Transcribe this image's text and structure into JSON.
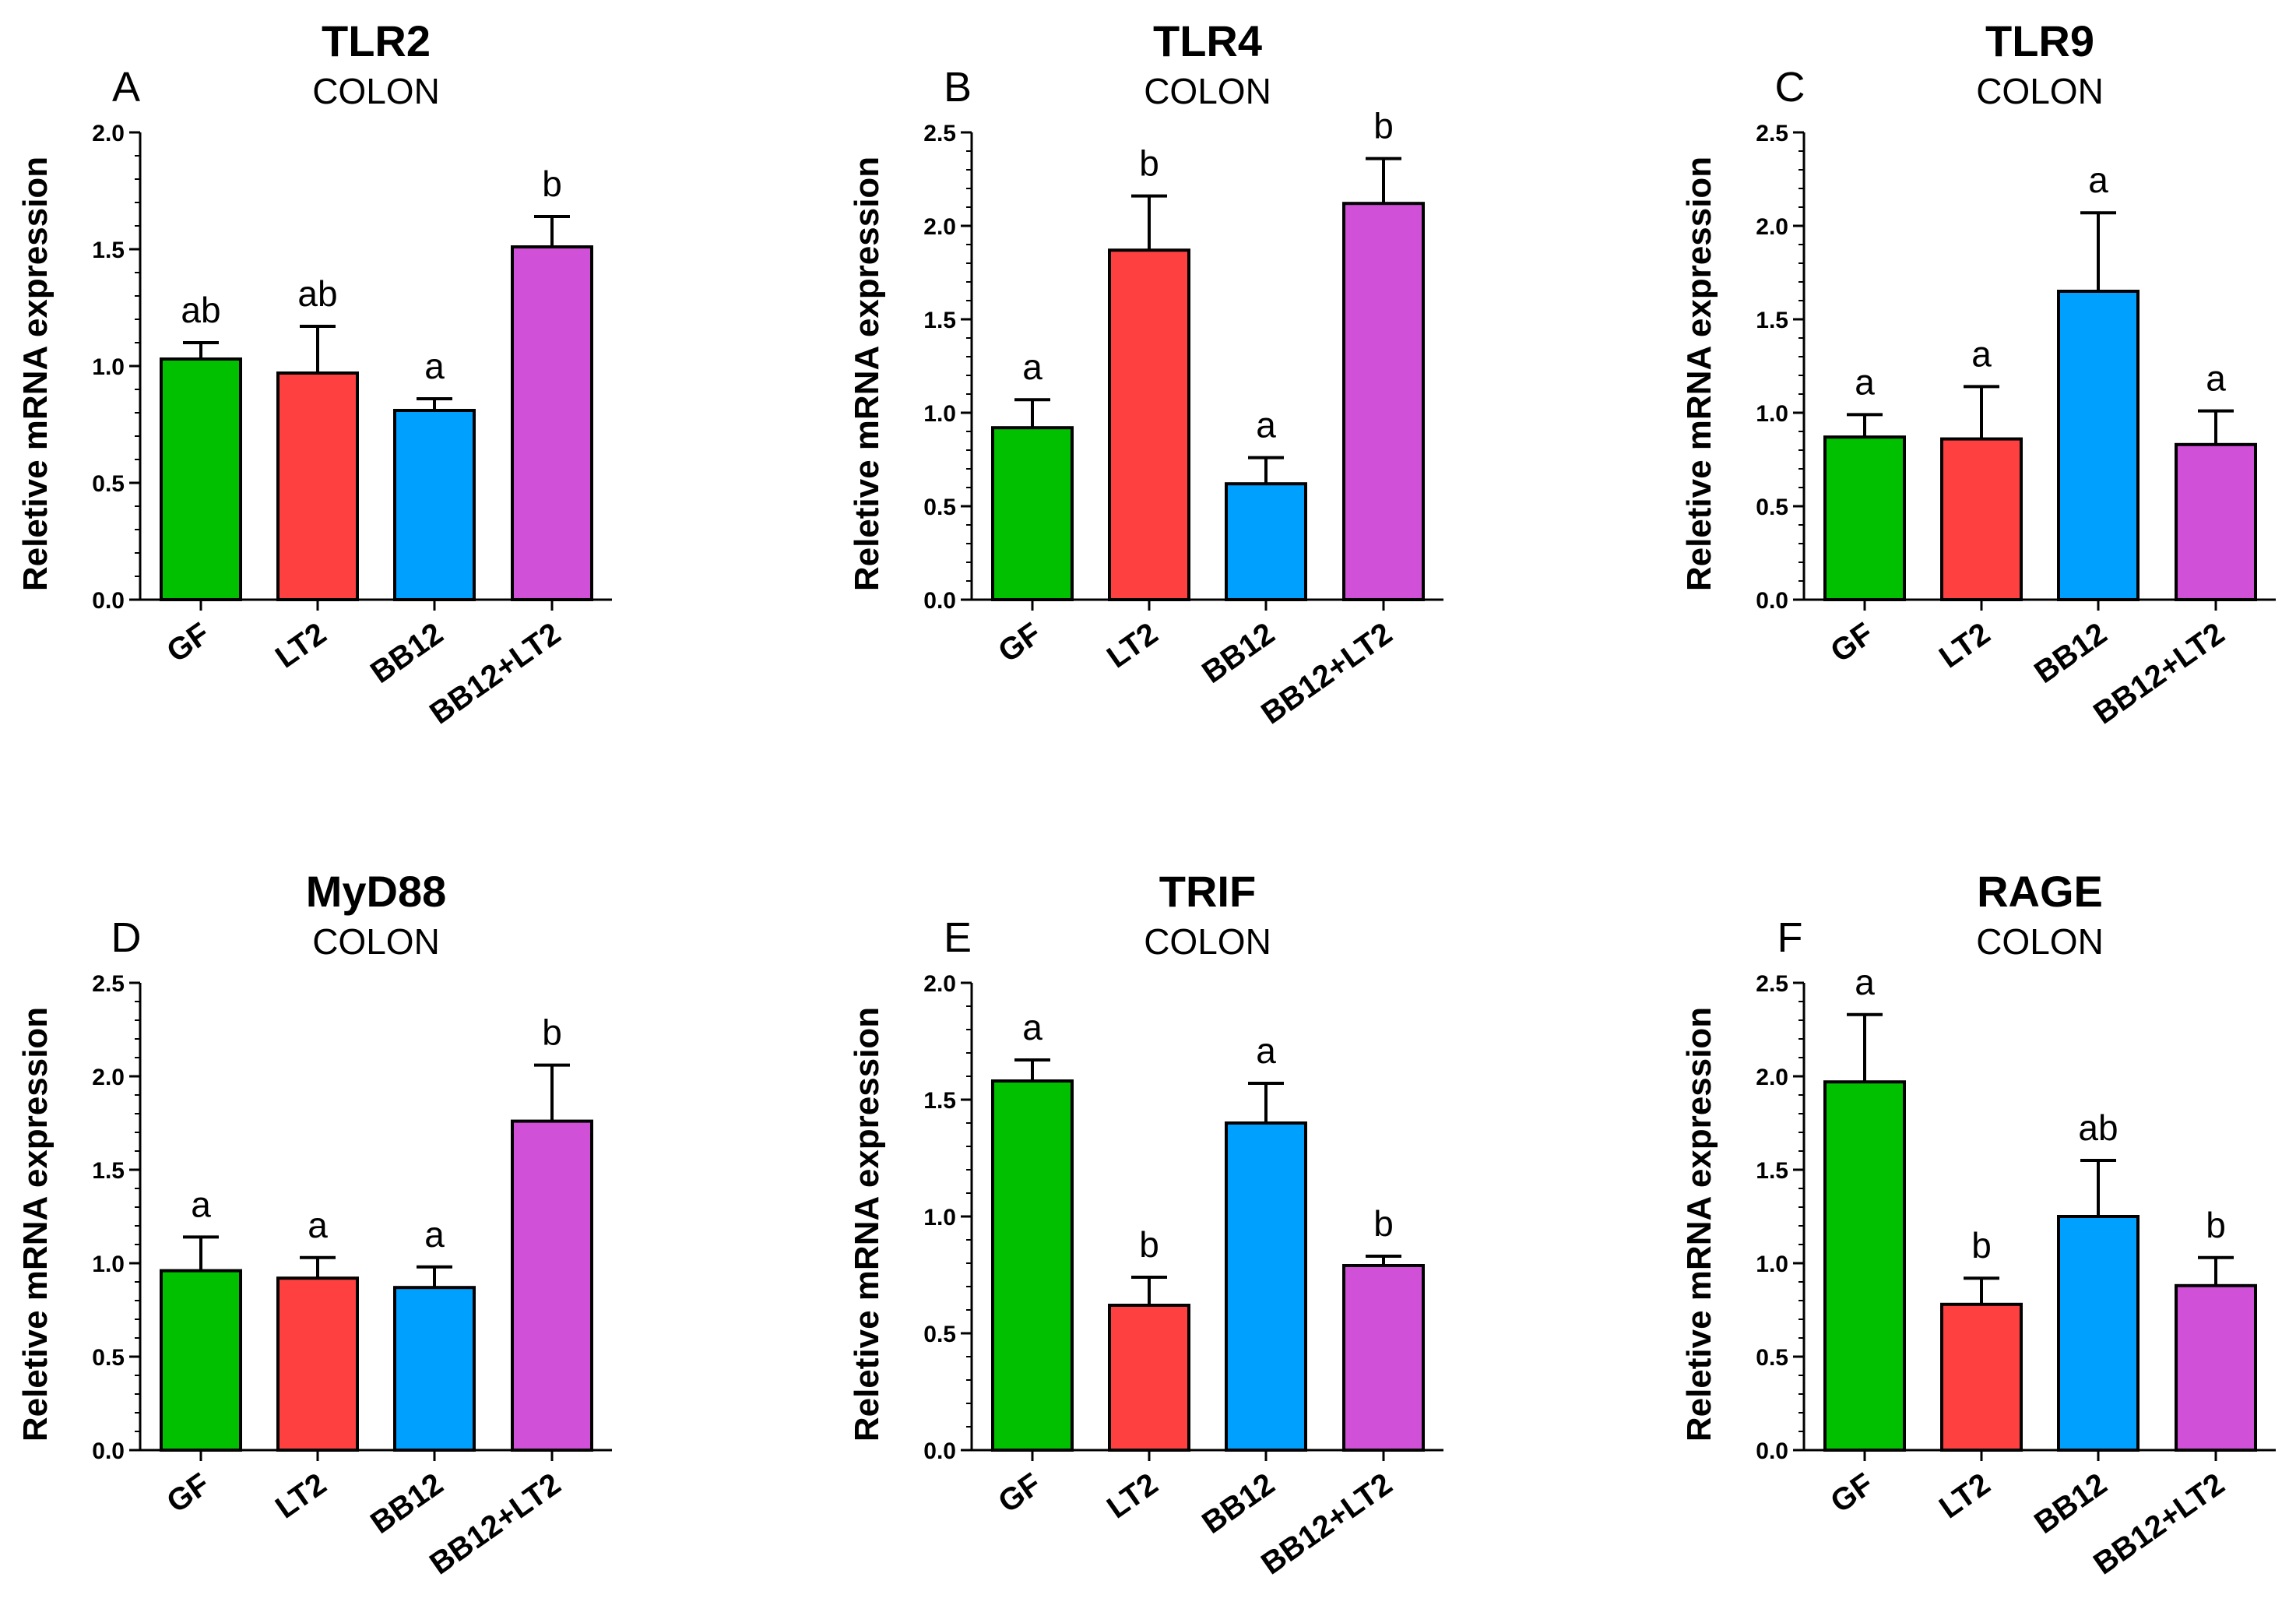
{
  "chart_data": [
    {
      "type": "bar",
      "panel": "A",
      "title": "TLR2",
      "subtitle": "COLON",
      "ylabel": "Reletive mRNA expression",
      "ylim": [
        0,
        2.0
      ],
      "yticks": [
        "0.0",
        "0.5",
        "1.0",
        "1.5",
        "2.0"
      ],
      "categories": [
        "GF",
        "LT2",
        "BB12",
        "BB12+LT2"
      ],
      "values": [
        1.03,
        0.97,
        0.81,
        1.51
      ],
      "errors": [
        0.07,
        0.2,
        0.05,
        0.13
      ],
      "labels": [
        "ab",
        "ab",
        "a",
        "b"
      ],
      "colors": [
        "#00c000",
        "#ff4040",
        "#00a0ff",
        "#d050d8"
      ]
    },
    {
      "type": "bar",
      "panel": "B",
      "title": "TLR4",
      "subtitle": "COLON",
      "ylabel": "Reletive mRNA expression",
      "ylim": [
        0,
        2.5
      ],
      "yticks": [
        "0.0",
        "0.5",
        "1.0",
        "1.5",
        "2.0",
        "2.5"
      ],
      "categories": [
        "GF",
        "LT2",
        "BB12",
        "BB12+LT2"
      ],
      "values": [
        0.92,
        1.87,
        0.62,
        2.12
      ],
      "errors": [
        0.15,
        0.29,
        0.14,
        0.24
      ],
      "labels": [
        "a",
        "b",
        "a",
        "b"
      ],
      "colors": [
        "#00c000",
        "#ff4040",
        "#00a0ff",
        "#d050d8"
      ]
    },
    {
      "type": "bar",
      "panel": "C",
      "title": "TLR9",
      "subtitle": "COLON",
      "ylabel": "Reletive mRNA expression",
      "ylim": [
        0,
        2.5
      ],
      "yticks": [
        "0.0",
        "0.5",
        "1.0",
        "1.5",
        "2.0",
        "2.5"
      ],
      "categories": [
        "GF",
        "LT2",
        "BB12",
        "BB12+LT2"
      ],
      "values": [
        0.87,
        0.86,
        1.65,
        0.83
      ],
      "errors": [
        0.12,
        0.28,
        0.42,
        0.18
      ],
      "labels": [
        "a",
        "a",
        "a",
        "a"
      ],
      "colors": [
        "#00c000",
        "#ff4040",
        "#00a0ff",
        "#d050d8"
      ]
    },
    {
      "type": "bar",
      "panel": "D",
      "title": "MyD88",
      "subtitle": "COLON",
      "ylabel": "Reletive mRNA expression",
      "ylim": [
        0,
        2.5
      ],
      "yticks": [
        "0.0",
        "0.5",
        "1.0",
        "1.5",
        "2.0",
        "2.5"
      ],
      "categories": [
        "GF",
        "LT2",
        "BB12",
        "BB12+LT2"
      ],
      "values": [
        0.96,
        0.92,
        0.87,
        1.76
      ],
      "errors": [
        0.18,
        0.11,
        0.11,
        0.3
      ],
      "labels": [
        "a",
        "a",
        "a",
        "b"
      ],
      "colors": [
        "#00c000",
        "#ff4040",
        "#00a0ff",
        "#d050d8"
      ]
    },
    {
      "type": "bar",
      "panel": "E",
      "title": "TRIF",
      "subtitle": "COLON",
      "ylabel": "Reletive mRNA expression",
      "ylim": [
        0,
        2.0
      ],
      "yticks": [
        "0.0",
        "0.5",
        "1.0",
        "1.5",
        "2.0"
      ],
      "categories": [
        "GF",
        "LT2",
        "BB12",
        "BB12+LT2"
      ],
      "values": [
        1.58,
        0.62,
        1.4,
        0.79
      ],
      "errors": [
        0.09,
        0.12,
        0.17,
        0.04
      ],
      "labels": [
        "a",
        "b",
        "a",
        "b"
      ],
      "colors": [
        "#00c000",
        "#ff4040",
        "#00a0ff",
        "#d050d8"
      ]
    },
    {
      "type": "bar",
      "panel": "F",
      "title": "RAGE",
      "subtitle": "COLON",
      "ylabel": "Reletive mRNA expression",
      "ylim": [
        0,
        2.5
      ],
      "yticks": [
        "0.0",
        "0.5",
        "1.0",
        "1.5",
        "2.0",
        "2.5"
      ],
      "categories": [
        "GF",
        "LT2",
        "BB12",
        "BB12+LT2"
      ],
      "values": [
        1.97,
        0.78,
        1.25,
        0.88
      ],
      "errors": [
        0.36,
        0.14,
        0.3,
        0.15
      ],
      "labels": [
        "a",
        "b",
        "ab",
        "b"
      ],
      "colors": [
        "#00c000",
        "#ff4040",
        "#00a0ff",
        "#d050d8"
      ]
    }
  ]
}
